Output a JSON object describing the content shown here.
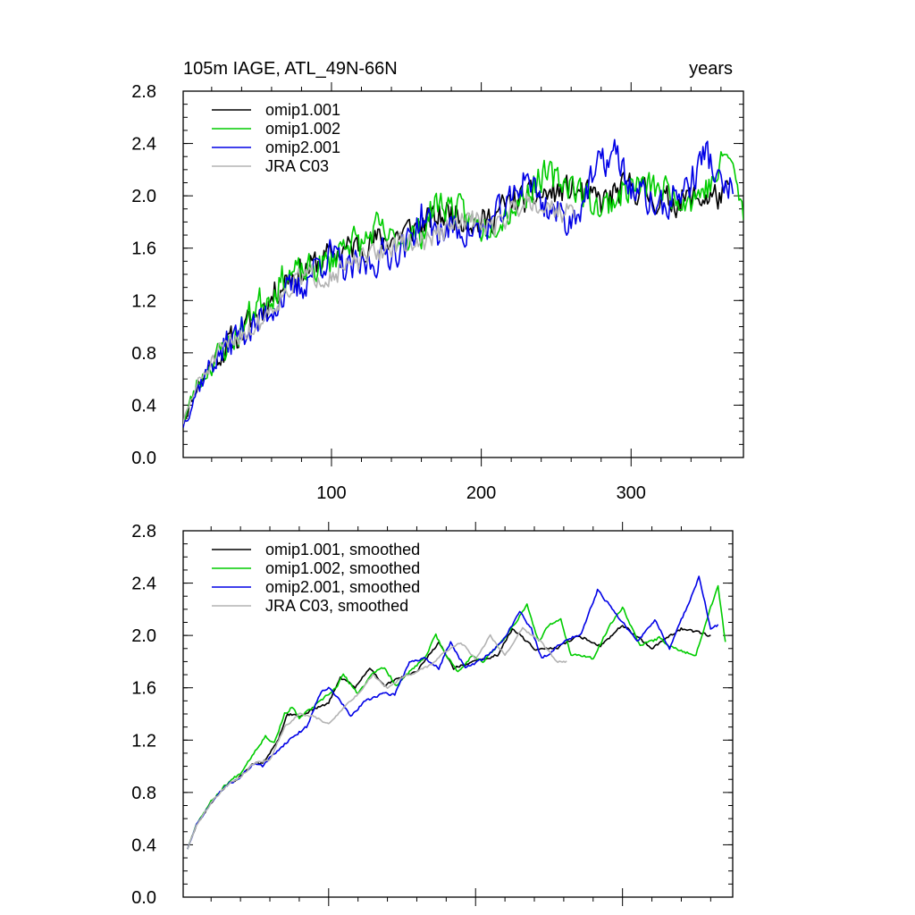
{
  "chart_data": [
    {
      "type": "line",
      "title_left": "105m IAGE, ATL_49N-66N",
      "title_right": "years",
      "xlim": [
        1,
        375
      ],
      "ylim": [
        0.0,
        2.8
      ],
      "x_ticks": [
        100,
        200,
        300
      ],
      "x_tick_labels": [
        "100",
        "200",
        "300"
      ],
      "y_ticks": [
        0.0,
        0.4,
        0.8,
        1.2,
        1.6,
        2.0,
        2.4,
        2.8
      ],
      "y_tick_labels": [
        "0.0",
        "0.4",
        "0.8",
        "1.2",
        "1.6",
        "2.0",
        "2.4",
        "2.8"
      ],
      "legend_position": "top-left",
      "series": [
        {
          "name": "omip1.001",
          "color": "#000000",
          "x_end": 365,
          "amplitude": 0.16,
          "seed": 11,
          "anchors": [
            [
              1,
              0.27
            ],
            [
              10,
              0.55
            ],
            [
              20,
              0.72
            ],
            [
              30,
              0.85
            ],
            [
              40,
              0.95
            ],
            [
              50,
              1.1
            ],
            [
              60,
              1.22
            ],
            [
              70,
              1.38
            ],
            [
              80,
              1.42
            ],
            [
              100,
              1.55
            ],
            [
              120,
              1.63
            ],
            [
              140,
              1.68
            ],
            [
              160,
              1.78
            ],
            [
              180,
              1.88
            ],
            [
              200,
              1.78
            ],
            [
              220,
              1.95
            ],
            [
              240,
              2.0
            ],
            [
              260,
              2.05
            ],
            [
              280,
              1.95
            ],
            [
              300,
              2.08
            ],
            [
              320,
              1.95
            ],
            [
              340,
              1.98
            ],
            [
              365,
              2.0
            ]
          ]
        },
        {
          "name": "omip1.002",
          "color": "#00cc00",
          "x_end": 375,
          "amplitude": 0.17,
          "seed": 23,
          "anchors": [
            [
              1,
              0.27
            ],
            [
              10,
              0.55
            ],
            [
              20,
              0.72
            ],
            [
              30,
              0.86
            ],
            [
              40,
              0.98
            ],
            [
              50,
              1.18
            ],
            [
              60,
              1.25
            ],
            [
              70,
              1.4
            ],
            [
              80,
              1.4
            ],
            [
              100,
              1.5
            ],
            [
              110,
              1.68
            ],
            [
              120,
              1.62
            ],
            [
              130,
              1.75
            ],
            [
              140,
              1.65
            ],
            [
              160,
              1.72
            ],
            [
              170,
              1.95
            ],
            [
              180,
              1.92
            ],
            [
              200,
              1.75
            ],
            [
              220,
              1.9
            ],
            [
              240,
              2.15
            ],
            [
              260,
              2.1
            ],
            [
              280,
              1.9
            ],
            [
              300,
              2.08
            ],
            [
              320,
              2.05
            ],
            [
              340,
              1.98
            ],
            [
              355,
              2.1
            ],
            [
              365,
              2.35
            ],
            [
              375,
              1.85
            ]
          ]
        },
        {
          "name": "omip2.001",
          "color": "#0000e6",
          "x_end": 368,
          "amplitude": 0.18,
          "seed": 37,
          "anchors": [
            [
              1,
              0.25
            ],
            [
              10,
              0.52
            ],
            [
              20,
              0.72
            ],
            [
              30,
              0.85
            ],
            [
              40,
              0.98
            ],
            [
              50,
              1.0
            ],
            [
              60,
              1.15
            ],
            [
              70,
              1.25
            ],
            [
              80,
              1.3
            ],
            [
              90,
              1.48
            ],
            [
              100,
              1.55
            ],
            [
              110,
              1.42
            ],
            [
              120,
              1.45
            ],
            [
              140,
              1.58
            ],
            [
              150,
              1.62
            ],
            [
              160,
              1.85
            ],
            [
              170,
              1.72
            ],
            [
              180,
              1.75
            ],
            [
              200,
              1.72
            ],
            [
              220,
              1.95
            ],
            [
              230,
              2.18
            ],
            [
              240,
              1.95
            ],
            [
              260,
              1.8
            ],
            [
              280,
              2.25
            ],
            [
              290,
              2.32
            ],
            [
              300,
              2.05
            ],
            [
              320,
              1.9
            ],
            [
              340,
              2.1
            ],
            [
              350,
              2.35
            ],
            [
              360,
              2.05
            ],
            [
              368,
              2.05
            ]
          ]
        },
        {
          "name": "JRA C03",
          "color": "#b3b3b3",
          "x_end": 262,
          "amplitude": 0.12,
          "seed": 51,
          "anchors": [
            [
              1,
              0.27
            ],
            [
              10,
              0.55
            ],
            [
              20,
              0.72
            ],
            [
              30,
              0.85
            ],
            [
              40,
              0.96
            ],
            [
              50,
              1.0
            ],
            [
              60,
              1.15
            ],
            [
              70,
              1.28
            ],
            [
              80,
              1.38
            ],
            [
              100,
              1.4
            ],
            [
              120,
              1.5
            ],
            [
              140,
              1.62
            ],
            [
              160,
              1.65
            ],
            [
              180,
              1.75
            ],
            [
              190,
              1.82
            ],
            [
              200,
              1.8
            ],
            [
              210,
              1.78
            ],
            [
              230,
              1.98
            ],
            [
              250,
              1.9
            ],
            [
              262,
              1.85
            ]
          ]
        }
      ]
    },
    {
      "type": "line",
      "xlim": [
        1,
        375
      ],
      "ylim": [
        0.0,
        2.8
      ],
      "x_ticks": [
        100,
        200,
        300
      ],
      "x_tick_labels": [],
      "y_ticks": [
        0.0,
        0.4,
        0.8,
        1.2,
        1.6,
        2.0,
        2.4,
        2.8
      ],
      "y_tick_labels": [
        "0.0",
        "0.4",
        "0.8",
        "1.2",
        "1.6",
        "2.0",
        "2.4",
        "2.8"
      ],
      "legend_position": "top-left",
      "series": [
        {
          "name": "omip1.001, smoothed",
          "color": "#000000",
          "x_end": 360,
          "amplitude": 0.015,
          "seed": 61,
          "anchors": [
            [
              4,
              0.37
            ],
            [
              10,
              0.55
            ],
            [
              20,
              0.72
            ],
            [
              30,
              0.85
            ],
            [
              40,
              0.92
            ],
            [
              50,
              1.03
            ],
            [
              55,
              1.02
            ],
            [
              65,
              1.18
            ],
            [
              72,
              1.4
            ],
            [
              80,
              1.38
            ],
            [
              90,
              1.44
            ],
            [
              100,
              1.48
            ],
            [
              108,
              1.68
            ],
            [
              118,
              1.6
            ],
            [
              128,
              1.75
            ],
            [
              138,
              1.62
            ],
            [
              150,
              1.68
            ],
            [
              160,
              1.72
            ],
            [
              175,
              1.95
            ],
            [
              185,
              1.75
            ],
            [
              200,
              1.8
            ],
            [
              215,
              1.85
            ],
            [
              225,
              2.05
            ],
            [
              240,
              1.9
            ],
            [
              255,
              1.9
            ],
            [
              270,
              2.0
            ],
            [
              285,
              1.92
            ],
            [
              300,
              2.08
            ],
            [
              320,
              1.9
            ],
            [
              340,
              2.05
            ],
            [
              360,
              2.0
            ]
          ]
        },
        {
          "name": "omip1.002, smoothed",
          "color": "#00cc00",
          "x_end": 370,
          "amplitude": 0.015,
          "seed": 67,
          "anchors": [
            [
              4,
              0.37
            ],
            [
              10,
              0.56
            ],
            [
              20,
              0.73
            ],
            [
              30,
              0.86
            ],
            [
              40,
              0.95
            ],
            [
              50,
              1.12
            ],
            [
              57,
              1.23
            ],
            [
              63,
              1.18
            ],
            [
              70,
              1.4
            ],
            [
              75,
              1.45
            ],
            [
              80,
              1.37
            ],
            [
              95,
              1.5
            ],
            [
              105,
              1.6
            ],
            [
              110,
              1.7
            ],
            [
              120,
              1.55
            ],
            [
              130,
              1.72
            ],
            [
              138,
              1.75
            ],
            [
              146,
              1.62
            ],
            [
              155,
              1.72
            ],
            [
              165,
              1.82
            ],
            [
              173,
              2.0
            ],
            [
              180,
              1.85
            ],
            [
              188,
              1.72
            ],
            [
              198,
              1.85
            ],
            [
              205,
              1.8
            ],
            [
              220,
              1.98
            ],
            [
              235,
              2.23
            ],
            [
              243,
              1.95
            ],
            [
              250,
              2.08
            ],
            [
              258,
              2.12
            ],
            [
              265,
              1.85
            ],
            [
              270,
              1.85
            ],
            [
              280,
              1.82
            ],
            [
              290,
              2.05
            ],
            [
              300,
              2.22
            ],
            [
              312,
              1.92
            ],
            [
              325,
              1.98
            ],
            [
              335,
              1.9
            ],
            [
              350,
              1.85
            ],
            [
              358,
              2.15
            ],
            [
              365,
              2.38
            ],
            [
              370,
              1.95
            ]
          ]
        },
        {
          "name": "omip2.001, smoothed",
          "color": "#0000e6",
          "x_end": 365,
          "amplitude": 0.015,
          "seed": 71,
          "anchors": [
            [
              4,
              0.37
            ],
            [
              10,
              0.55
            ],
            [
              20,
              0.72
            ],
            [
              30,
              0.85
            ],
            [
              40,
              0.92
            ],
            [
              50,
              1.03
            ],
            [
              55,
              1.0
            ],
            [
              65,
              1.12
            ],
            [
              75,
              1.22
            ],
            [
              85,
              1.3
            ],
            [
              95,
              1.58
            ],
            [
              100,
              1.6
            ],
            [
              108,
              1.5
            ],
            [
              115,
              1.38
            ],
            [
              125,
              1.5
            ],
            [
              135,
              1.55
            ],
            [
              145,
              1.55
            ],
            [
              155,
              1.8
            ],
            [
              165,
              1.82
            ],
            [
              175,
              1.75
            ],
            [
              183,
              1.95
            ],
            [
              193,
              1.75
            ],
            [
              205,
              1.82
            ],
            [
              218,
              1.95
            ],
            [
              230,
              2.18
            ],
            [
              238,
              2.05
            ],
            [
              245,
              1.82
            ],
            [
              260,
              1.95
            ],
            [
              272,
              2.02
            ],
            [
              283,
              2.35
            ],
            [
              292,
              2.22
            ],
            [
              300,
              2.1
            ],
            [
              310,
              1.95
            ],
            [
              322,
              2.12
            ],
            [
              332,
              1.9
            ],
            [
              345,
              2.25
            ],
            [
              352,
              2.45
            ],
            [
              360,
              2.05
            ],
            [
              365,
              2.08
            ]
          ]
        },
        {
          "name": "JRA C03, smoothed",
          "color": "#b3b3b3",
          "x_end": 262,
          "amplitude": 0.012,
          "seed": 79,
          "anchors": [
            [
              4,
              0.37
            ],
            [
              10,
              0.55
            ],
            [
              20,
              0.72
            ],
            [
              30,
              0.85
            ],
            [
              40,
              0.92
            ],
            [
              50,
              1.03
            ],
            [
              60,
              1.05
            ],
            [
              70,
              1.3
            ],
            [
              80,
              1.4
            ],
            [
              90,
              1.38
            ],
            [
              100,
              1.32
            ],
            [
              110,
              1.45
            ],
            [
              120,
              1.55
            ],
            [
              130,
              1.7
            ],
            [
              140,
              1.6
            ],
            [
              150,
              1.68
            ],
            [
              160,
              1.72
            ],
            [
              170,
              1.78
            ],
            [
              180,
              1.88
            ],
            [
              190,
              1.95
            ],
            [
              200,
              1.82
            ],
            [
              210,
              2.0
            ],
            [
              220,
              1.85
            ],
            [
              232,
              2.05
            ],
            [
              245,
              1.95
            ],
            [
              255,
              1.8
            ],
            [
              262,
              1.8
            ]
          ]
        }
      ]
    }
  ]
}
